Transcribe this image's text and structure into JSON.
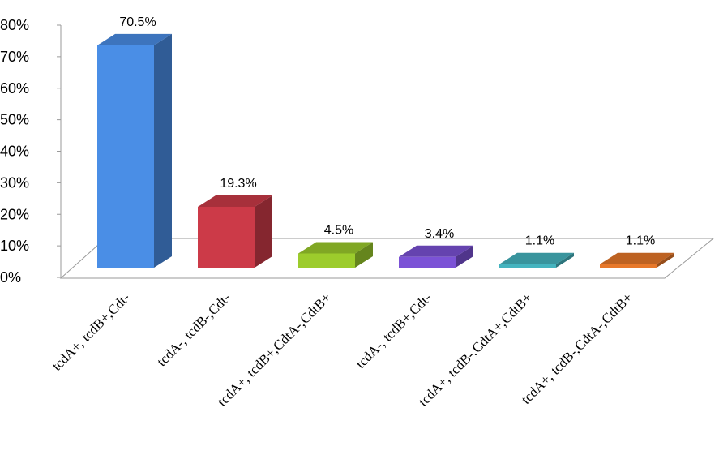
{
  "chart_data": {
    "type": "bar",
    "categories": [
      "tcdA+, tcdB+,Cdt-",
      "tcdA-, tcdB-,Cdt-",
      "tcdA+, tcdB+,CdtA-,CdtB+",
      "tcdA-, tcdB+,Cdt-",
      "tcdA+, tcdB-,CdtA+,CdtB+",
      "tcdA+, tcdB-,CdtA-,CdtB+"
    ],
    "values": [
      70.5,
      19.3,
      4.5,
      3.4,
      1.1,
      1.1
    ],
    "data_labels": [
      "70.5%",
      "19.3%",
      "4.5%",
      "3.4%",
      "1.1%",
      "1.1%"
    ],
    "colors": [
      "#4a8ee6",
      "#cc3a48",
      "#9ccc2c",
      "#7b52d6",
      "#45b4bf",
      "#e7782a"
    ],
    "ylim": [
      0,
      80
    ],
    "yticks": [
      "0%",
      "10%",
      "20%",
      "30%",
      "40%",
      "50%",
      "60%",
      "70%",
      "80%"
    ],
    "title": "",
    "xlabel": "",
    "ylabel": "",
    "grid": false,
    "style": "3d-column"
  }
}
